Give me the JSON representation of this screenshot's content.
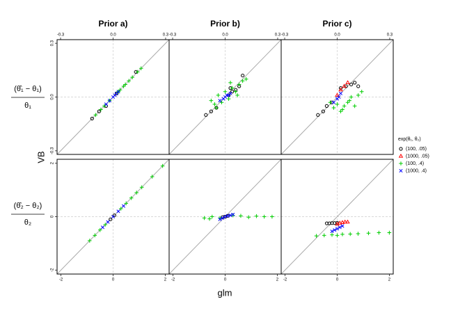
{
  "figure": {
    "xlabel": "glm",
    "ylabel": "VB",
    "row_labels": [
      {
        "numerator": "(θ̂₁ − θ₁)",
        "denominator": "θ₁"
      },
      {
        "numerator": "(θ̂₂ − θ₂)",
        "denominator": "θ₂"
      }
    ],
    "legend": {
      "title": "exp(θ₁, θ₂)",
      "entries": [
        {
          "name": "(100, .05)",
          "color": "#000000",
          "marker": "circle"
        },
        {
          "name": "(1000, .05)",
          "color": "#ff0000",
          "marker": "triangle"
        },
        {
          "name": "(100,  .4)",
          "color": "#00cd00",
          "marker": "plus"
        },
        {
          "name": "(1000,  .4)",
          "color": "#0000ff",
          "marker": "cross"
        }
      ]
    }
  },
  "chart_data": [
    {
      "type": "scatter",
      "title": "Prior a)",
      "xlim": [
        -0.32,
        0.32
      ],
      "ylim": [
        -0.32,
        0.32
      ],
      "xticks": [
        -0.3,
        {
          "value": 0,
          "label": "0.0"
        },
        0.3
      ],
      "yticks": [
        -0.3,
        {
          "value": 0,
          "label": "0.0"
        },
        0.3
      ],
      "series": [
        {
          "x": [
            -0.12,
            -0.08,
            -0.04,
            0.02,
            0.13
          ],
          "values": [
            -0.12,
            -0.08,
            -0.05,
            0.02,
            0.14
          ]
        },
        {
          "x": [],
          "values": []
        },
        {
          "x": [
            -0.1,
            -0.07,
            -0.05,
            -0.02,
            0.03,
            0.06,
            0.09,
            0.11,
            0.14,
            0.16,
            0.04,
            0.07
          ],
          "values": [
            -0.1,
            -0.07,
            -0.05,
            -0.02,
            0.03,
            0.06,
            0.09,
            0.11,
            0.14,
            0.16,
            0.04,
            0.07
          ]
        },
        {
          "x": [
            -0.04,
            -0.02,
            0,
            0.01,
            0.02,
            0.03
          ],
          "values": [
            -0.04,
            -0.02,
            0,
            0.01,
            0.02,
            0.03
          ]
        }
      ]
    },
    {
      "type": "scatter",
      "title": "Prior b)",
      "xlim": [
        -0.32,
        0.32
      ],
      "ylim": [
        -0.32,
        0.32
      ],
      "xticks": [
        -0.3,
        {
          "value": 0,
          "label": "0.0"
        },
        0.3
      ],
      "series": [
        {
          "x": [
            -0.11,
            -0.08,
            -0.05,
            0.02,
            0.04,
            0.06,
            0.08,
            0.1,
            0.03
          ],
          "values": [
            -0.1,
            -0.08,
            -0.06,
            0.01,
            0.03,
            0.04,
            0.06,
            0.12,
            0.05
          ]
        },
        {
          "x": [],
          "values": []
        },
        {
          "x": [
            -0.08,
            -0.06,
            -0.04,
            -0.02,
            0,
            0.02,
            0.04,
            0.06,
            0.08,
            0.1,
            0.12,
            0.03,
            -0.05,
            0.07
          ],
          "values": [
            -0.02,
            -0.04,
            0.01,
            -0.03,
            0.03,
            -0.01,
            0.05,
            0.03,
            0.07,
            0.09,
            0.1,
            0.08,
            -0.06,
            0.01
          ]
        },
        {
          "x": [
            -0.03,
            -0.01,
            0,
            0.01,
            0.02,
            0.03
          ],
          "values": [
            -0.02,
            -0.01,
            0,
            0.01,
            0.01,
            0.02
          ]
        }
      ]
    },
    {
      "type": "scatter",
      "title": "Prior c)",
      "xlim": [
        -0.32,
        0.32
      ],
      "ylim": [
        -0.32,
        0.32
      ],
      "xticks": [
        -0.3,
        {
          "value": 0,
          "label": "0.0"
        },
        0.3
      ],
      "series": [
        {
          "x": [
            -0.11,
            -0.08,
            -0.06,
            -0.03,
            0.05,
            0.08,
            0.1,
            0.12,
            0.02
          ],
          "values": [
            -0.1,
            -0.08,
            -0.05,
            -0.03,
            0.06,
            0.07,
            0.08,
            0.06,
            0.05
          ]
        },
        {
          "x": [
            0,
            0.02,
            0.04,
            0.06
          ],
          "values": [
            0.01,
            0.04,
            0.06,
            0.08
          ]
        },
        {
          "x": [
            -0.04,
            -0.02,
            0,
            0.02,
            0.04,
            0.06,
            0.08,
            0.1,
            0.12,
            0.14,
            0.03,
            0.07
          ],
          "values": [
            -0.03,
            -0.06,
            -0.04,
            -0.08,
            -0.05,
            -0.03,
            0,
            -0.05,
            0.01,
            0.03,
            -0.07,
            -0.02
          ]
        },
        {
          "x": [
            -0.02,
            0,
            0.01,
            0.02
          ],
          "values": [
            -0.03,
            -0.01,
            0,
            0.02
          ]
        }
      ]
    },
    {
      "type": "scatter",
      "xlim": [
        -2.15,
        2.15
      ],
      "ylim": [
        -2.15,
        2.15
      ],
      "xticks": [
        -2,
        0,
        2
      ],
      "yticks": [
        -2,
        0,
        2
      ],
      "series": [
        {
          "x": [
            -0.1,
            0.05
          ],
          "values": [
            -0.1,
            0.05
          ]
        },
        {
          "x": [],
          "values": []
        },
        {
          "x": [
            -0.9,
            -0.7,
            -0.5,
            -0.3,
            0.3,
            0.5,
            0.7,
            0.9,
            1.1,
            1.5,
            1.9
          ],
          "values": [
            -0.9,
            -0.7,
            -0.5,
            -0.3,
            0.3,
            0.5,
            0.7,
            0.9,
            1.1,
            1.5,
            1.9
          ]
        },
        {
          "x": [
            -0.4,
            -0.2,
            0,
            0.2,
            0.4
          ],
          "values": [
            -0.4,
            -0.2,
            0,
            0.2,
            0.4
          ]
        }
      ]
    },
    {
      "type": "scatter",
      "xlim": [
        -2.15,
        2.15
      ],
      "ylim": [
        -2.15,
        2.15
      ],
      "xticks": [
        -2,
        0,
        2
      ],
      "series": [
        {
          "x": [
            -0.1,
            0,
            0.1
          ],
          "values": [
            -0.02,
            0,
            0.03
          ]
        },
        {
          "x": [],
          "values": []
        },
        {
          "x": [
            -0.8,
            -0.5,
            -0.2,
            0.3,
            0.6,
            0.9,
            1.2,
            1.5,
            1.8,
            -0.6
          ],
          "values": [
            -0.05,
            0,
            -0.05,
            0.05,
            0.03,
            -0.02,
            0.02,
            0,
            0,
            -0.08
          ]
        },
        {
          "x": [
            -0.2,
            -0.1,
            0,
            0.1,
            0.2,
            0.3
          ],
          "values": [
            -0.1,
            -0.05,
            0,
            0.03,
            0.05,
            0.08
          ]
        }
      ]
    },
    {
      "type": "scatter",
      "xlim": [
        -2.15,
        2.15
      ],
      "ylim": [
        -2.15,
        2.15
      ],
      "xticks": [
        -2,
        0,
        2
      ],
      "series": [
        {
          "x": [
            -0.4,
            -0.3,
            -0.2,
            -0.1,
            0
          ],
          "values": [
            -0.25,
            -0.25,
            -0.24,
            -0.24,
            -0.23
          ]
        },
        {
          "x": [
            0,
            0.1,
            0.2,
            0.3,
            0.4
          ],
          "values": [
            -0.28,
            -0.24,
            -0.22,
            -0.2,
            -0.2
          ]
        },
        {
          "x": [
            -0.8,
            -0.5,
            -0.2,
            0.2,
            0.5,
            0.8,
            1.2,
            1.6,
            2.0,
            0
          ],
          "values": [
            -0.72,
            -0.7,
            -0.68,
            -0.66,
            -0.65,
            -0.64,
            -0.62,
            -0.6,
            -0.6,
            -0.7
          ]
        },
        {
          "x": [
            -0.2,
            -0.1,
            0,
            0.1,
            0.2
          ],
          "values": [
            -0.55,
            -0.5,
            -0.45,
            -0.4,
            -0.35
          ]
        }
      ]
    }
  ]
}
